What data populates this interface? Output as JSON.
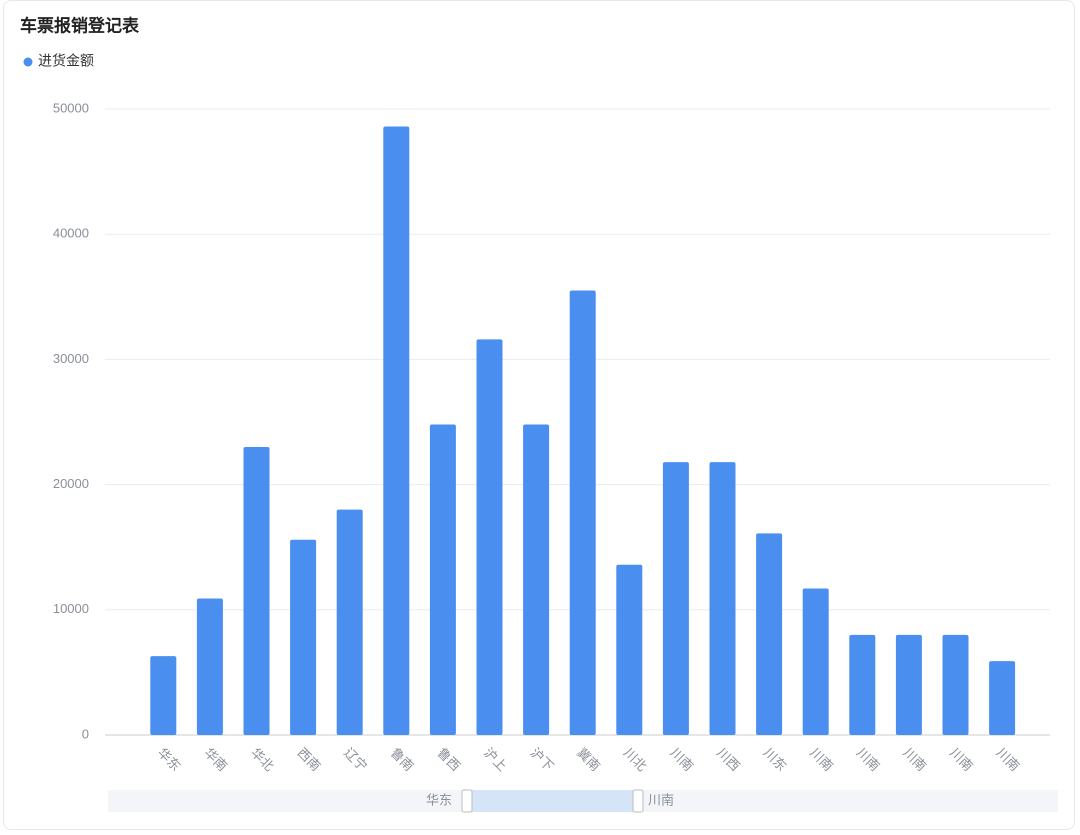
{
  "chart_data": {
    "type": "bar",
    "title": "车票报销登记表",
    "categories": [
      "华东",
      "华南",
      "华北",
      "西南",
      "辽宁",
      "鲁南",
      "鲁西",
      "沪上",
      "沪下",
      "冀南",
      "川北",
      "川南",
      "川西",
      "川东",
      "川南",
      "川南",
      "川南",
      "川南",
      "川南"
    ],
    "series": [
      {
        "name": "进货金额",
        "color": "#4a8ef0",
        "values": [
          6300,
          10900,
          23000,
          15600,
          18000,
          48600,
          24800,
          31600,
          24800,
          35500,
          13600,
          21800,
          21800,
          16100,
          11700,
          8000,
          8000,
          8000,
          5900
        ]
      }
    ],
    "ylim": [
      0,
      50000
    ],
    "yticks": [
      0,
      10000,
      20000,
      30000,
      40000,
      50000
    ],
    "grid": true
  }
}
